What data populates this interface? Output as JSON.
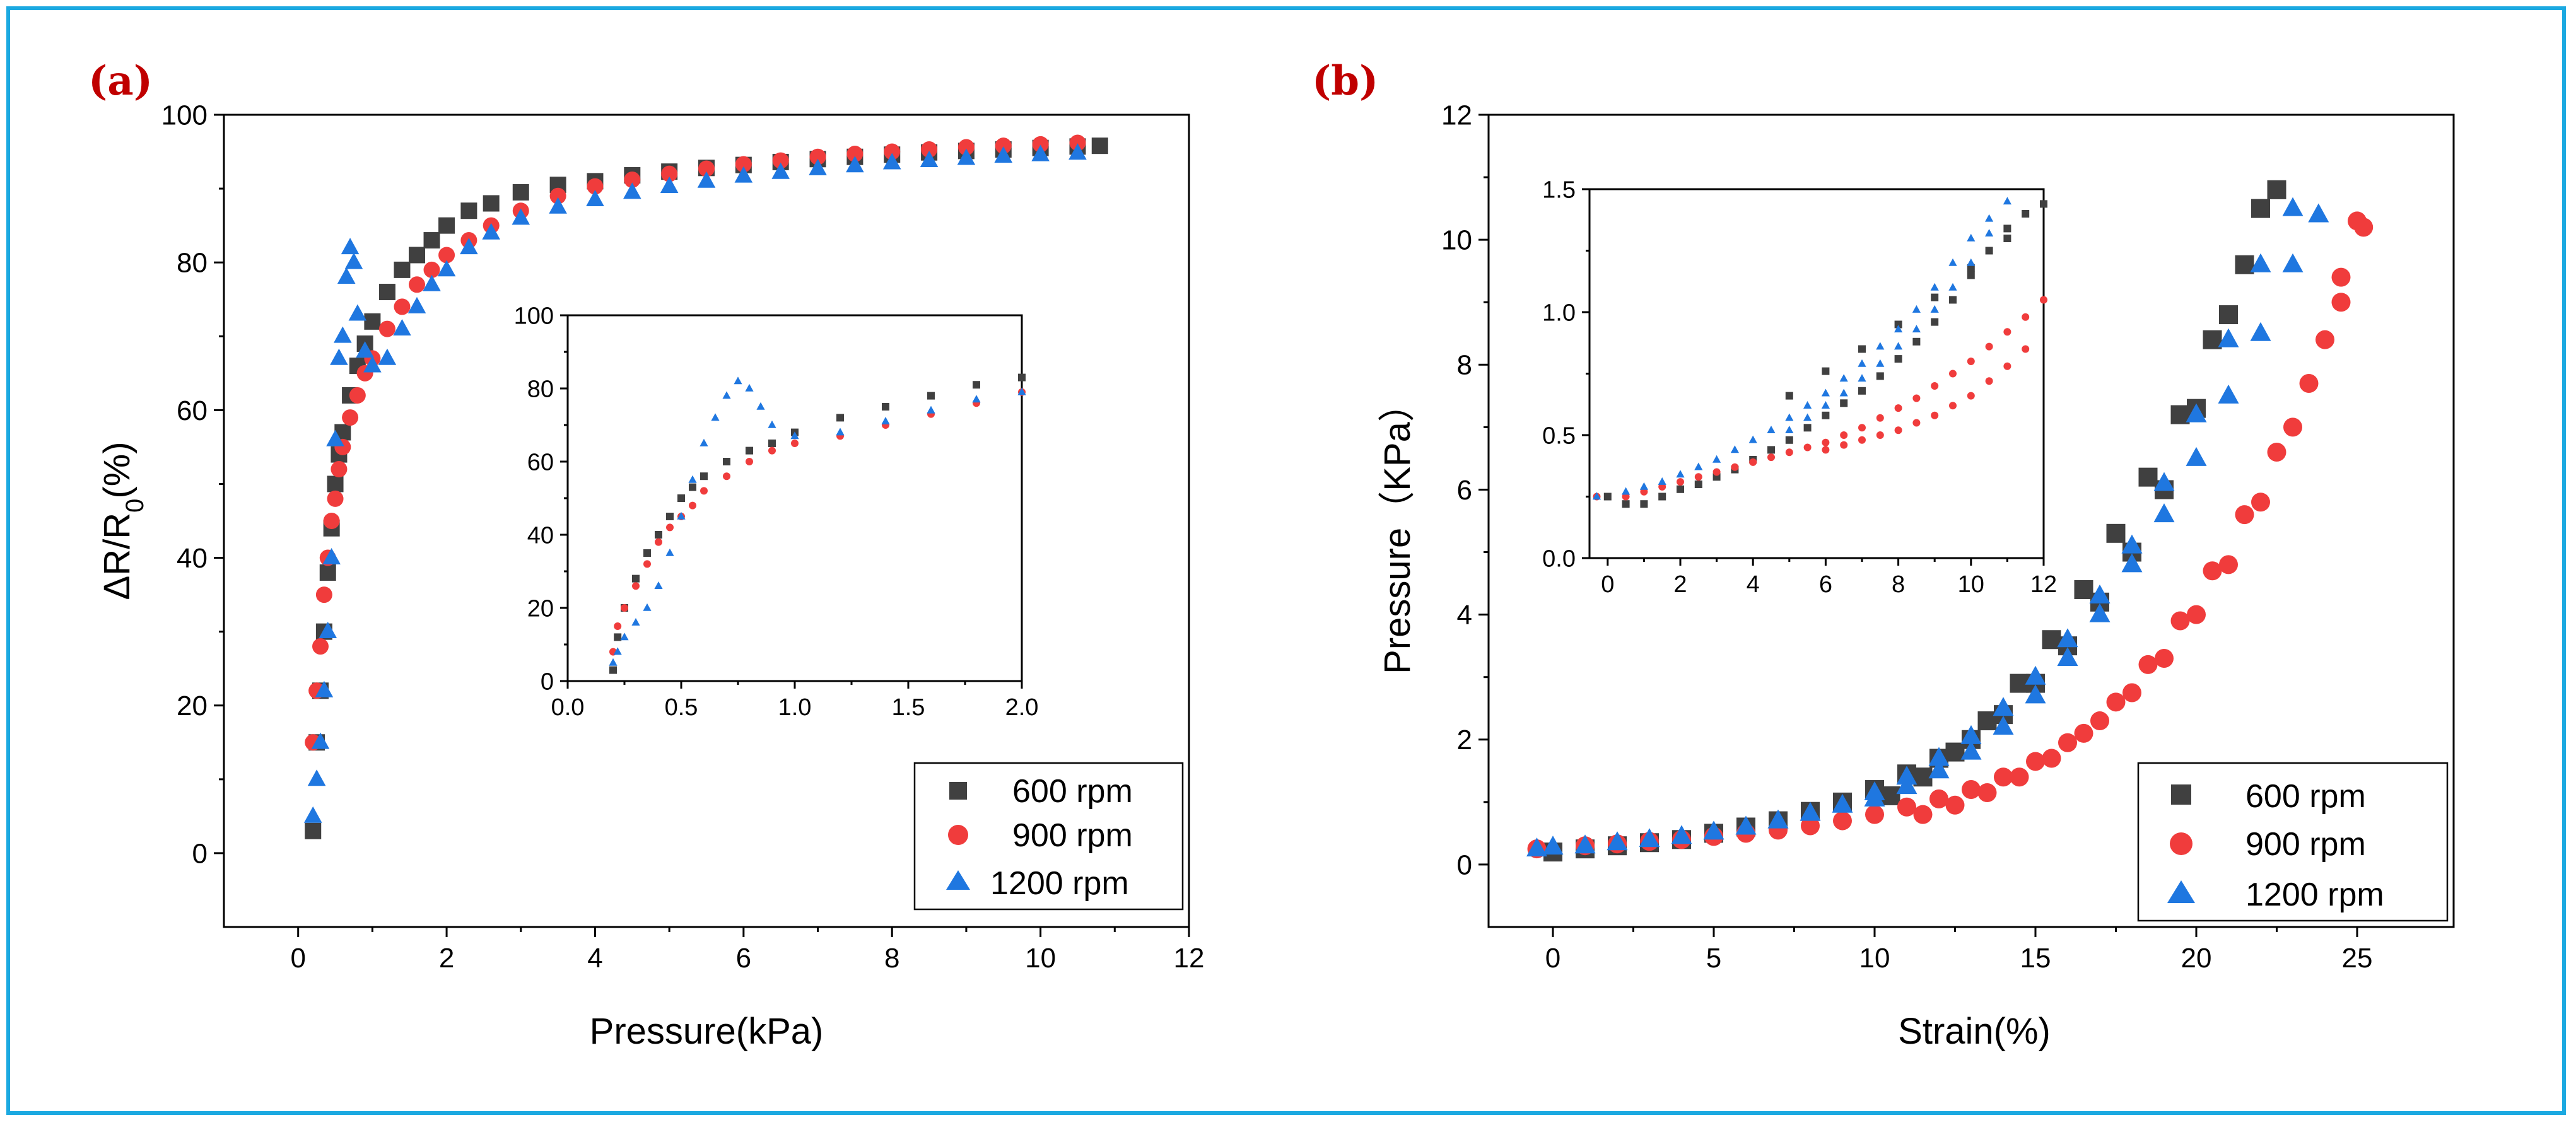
{
  "figure": {
    "border_color": "#1ba9e1",
    "label_color": "#c00000"
  },
  "series_style": [
    {
      "name": "600 rpm",
      "color": "#404040",
      "marker": "square"
    },
    {
      "name": "900 rpm",
      "color": "#f03c3c",
      "marker": "circle"
    },
    {
      "name": "1200 rpm",
      "color": "#1f77e0",
      "marker": "triangle"
    }
  ],
  "chart_data": [
    {
      "panel": "(a)",
      "type": "scatter",
      "xlabel": "Pressure(kPa)",
      "ylabel": "ΔR/R",
      "ylabel_sub": "0",
      "ylabel_suffix": "(%)",
      "xlim": [
        -1,
        12
      ],
      "ylim": [
        -10,
        100
      ],
      "xticks": [
        0,
        2,
        4,
        6,
        8,
        10,
        12
      ],
      "yticks": [
        0,
        20,
        40,
        60,
        80,
        100
      ],
      "legend": [
        "600 rpm",
        "900 rpm",
        "1200 rpm"
      ],
      "legend_position": "bottom-right",
      "series": [
        {
          "name": "600 rpm",
          "x": [
            0.2,
            0.25,
            0.3,
            0.35,
            0.4,
            0.45,
            0.5,
            0.55,
            0.6,
            0.7,
            0.8,
            0.9,
            1.0,
            1.2,
            1.4,
            1.6,
            1.8,
            2.0,
            2.3,
            2.6,
            3.0,
            3.5,
            4.0,
            4.5,
            5.0,
            5.5,
            6.0,
            6.5,
            7.0,
            7.5,
            8.0,
            8.5,
            9.0,
            9.5,
            10.0,
            10.5,
            10.8
          ],
          "y": [
            3,
            15,
            22,
            30,
            38,
            44,
            50,
            54,
            57,
            62,
            66,
            69,
            72,
            76,
            79,
            81,
            83,
            85,
            87,
            88,
            89.5,
            90.5,
            91,
            91.8,
            92.3,
            92.8,
            93.2,
            93.6,
            94,
            94.3,
            94.6,
            94.9,
            95.1,
            95.3,
            95.5,
            95.7,
            95.8
          ]
        },
        {
          "name": "900 rpm",
          "x": [
            0.2,
            0.25,
            0.3,
            0.35,
            0.4,
            0.45,
            0.5,
            0.55,
            0.6,
            0.7,
            0.8,
            0.9,
            1.0,
            1.2,
            1.4,
            1.6,
            1.8,
            2.0,
            2.3,
            2.6,
            3.0,
            3.5,
            4.0,
            4.5,
            5.0,
            5.5,
            6.0,
            6.5,
            7.0,
            7.5,
            8.0,
            8.5,
            9.0,
            9.5,
            10.0,
            10.5
          ],
          "y": [
            15,
            22,
            28,
            35,
            40,
            45,
            48,
            52,
            55,
            59,
            62,
            65,
            67,
            71,
            74,
            77,
            79,
            81,
            83,
            85,
            87,
            89,
            90.3,
            91.2,
            92,
            92.7,
            93.3,
            93.8,
            94.3,
            94.7,
            95,
            95.3,
            95.6,
            95.8,
            96,
            96.2
          ]
        },
        {
          "name": "1200 rpm",
          "x": [
            0.2,
            0.25,
            0.3,
            0.35,
            0.4,
            0.45,
            0.5,
            0.55,
            0.6,
            0.65,
            0.7,
            0.75,
            0.8,
            0.9,
            1.0,
            1.2,
            1.4,
            1.6,
            1.8,
            2.0,
            2.3,
            2.6,
            3.0,
            3.5,
            4.0,
            4.5,
            5.0,
            5.5,
            6.0,
            6.5,
            7.0,
            7.5,
            8.0,
            8.5,
            9.0,
            9.5,
            10.0,
            10.5
          ],
          "y": [
            5,
            10,
            15,
            22,
            30,
            40,
            56,
            67,
            70,
            78,
            82,
            80,
            73,
            68,
            66,
            67,
            71,
            74,
            77,
            79,
            82,
            84,
            86,
            87.5,
            88.5,
            89.5,
            90.3,
            91,
            91.7,
            92.2,
            92.7,
            93.1,
            93.5,
            93.8,
            94.1,
            94.4,
            94.6,
            94.8
          ]
        }
      ]
    },
    {
      "panel": "(a) inset",
      "type": "scatter",
      "xlim": [
        0,
        2
      ],
      "ylim": [
        0,
        100
      ],
      "xticks": [
        0.0,
        0.5,
        1.0,
        1.5,
        2.0
      ],
      "xtick_labels": [
        "0.0",
        "0.5",
        "1.0",
        "1.5",
        "2.0"
      ],
      "yticks": [
        0,
        20,
        40,
        60,
        80,
        100
      ],
      "series": [
        {
          "name": "600 rpm",
          "x": [
            0.2,
            0.22,
            0.25,
            0.3,
            0.35,
            0.4,
            0.45,
            0.5,
            0.55,
            0.6,
            0.7,
            0.8,
            0.9,
            1.0,
            1.2,
            1.4,
            1.6,
            1.8,
            2.0
          ],
          "y": [
            3,
            12,
            20,
            28,
            35,
            40,
            45,
            50,
            53,
            56,
            60,
            63,
            65,
            68,
            72,
            75,
            78,
            81,
            83
          ]
        },
        {
          "name": "900 rpm",
          "x": [
            0.2,
            0.22,
            0.25,
            0.3,
            0.35,
            0.4,
            0.45,
            0.5,
            0.55,
            0.6,
            0.7,
            0.8,
            0.9,
            1.0,
            1.2,
            1.4,
            1.6,
            1.8,
            2.0
          ],
          "y": [
            8,
            15,
            20,
            26,
            32,
            38,
            42,
            45,
            48,
            52,
            56,
            60,
            63,
            65,
            67,
            70,
            73,
            76,
            79
          ]
        },
        {
          "name": "1200 rpm",
          "x": [
            0.2,
            0.22,
            0.25,
            0.3,
            0.35,
            0.4,
            0.45,
            0.5,
            0.55,
            0.6,
            0.65,
            0.7,
            0.75,
            0.8,
            0.85,
            0.9,
            1.0,
            1.2,
            1.4,
            1.6,
            1.8,
            2.0
          ],
          "y": [
            5,
            8,
            12,
            16,
            20,
            26,
            35,
            45,
            55,
            65,
            72,
            78,
            82,
            80,
            75,
            70,
            67,
            68,
            71,
            74,
            77,
            79
          ]
        }
      ]
    },
    {
      "panel": "(b)",
      "type": "scatter",
      "xlabel": "Strain(%)",
      "ylabel": "Pressure（KPa）",
      "xlim": [
        -2,
        28
      ],
      "ylim": [
        -1,
        12
      ],
      "xticks": [
        0,
        5,
        10,
        15,
        20,
        25
      ],
      "yticks": [
        0,
        2,
        4,
        6,
        8,
        10,
        12
      ],
      "legend": [
        "600 rpm",
        "900 rpm",
        "1200 rpm"
      ],
      "legend_position": "bottom-right",
      "series": [
        {
          "name": "600 rpm",
          "x": [
            0,
            1,
            2,
            3,
            4,
            5,
            6,
            7,
            8,
            9,
            10,
            11,
            12,
            13,
            14,
            15,
            16,
            17,
            18,
            19,
            20,
            21,
            22,
            22.5,
            21.5,
            20.5,
            19.5,
            18.5,
            17.5,
            16.5,
            15.5,
            14.5,
            13.5,
            12.5,
            11.5,
            10.5
          ],
          "y": [
            0.2,
            0.25,
            0.3,
            0.35,
            0.4,
            0.5,
            0.6,
            0.7,
            0.85,
            1.0,
            1.2,
            1.45,
            1.7,
            2.0,
            2.4,
            2.9,
            3.5,
            4.2,
            5.0,
            6.0,
            7.3,
            8.8,
            10.5,
            10.8,
            9.6,
            8.4,
            7.2,
            6.2,
            5.3,
            4.4,
            3.6,
            2.9,
            2.3,
            1.8,
            1.4,
            1.1
          ]
        },
        {
          "name": "900 rpm",
          "x": [
            -0.5,
            1,
            2,
            3,
            4,
            5,
            6,
            7,
            8,
            9,
            10,
            11,
            12,
            13,
            14,
            15,
            16,
            17,
            18,
            19,
            20,
            21,
            22,
            23,
            24,
            24.5,
            25,
            25.2,
            24.5,
            23.5,
            22.5,
            21.5,
            20.5,
            19.5,
            18.5,
            17.5,
            16.5,
            15.5,
            14.5,
            13.5,
            12.5,
            11.5
          ],
          "y": [
            0.25,
            0.3,
            0.33,
            0.37,
            0.4,
            0.45,
            0.5,
            0.55,
            0.62,
            0.7,
            0.8,
            0.92,
            1.05,
            1.2,
            1.4,
            1.65,
            1.95,
            2.3,
            2.75,
            3.3,
            4.0,
            4.8,
            5.8,
            7.0,
            8.4,
            9.4,
            10.3,
            10.2,
            9.0,
            7.7,
            6.6,
            5.6,
            4.7,
            3.9,
            3.2,
            2.6,
            2.1,
            1.7,
            1.4,
            1.15,
            0.95,
            0.8
          ]
        },
        {
          "name": "1200 rpm",
          "x": [
            -0.5,
            0,
            1,
            2,
            3,
            4,
            5,
            6,
            7,
            8,
            9,
            10,
            11,
            12,
            13,
            14,
            15,
            16,
            17,
            18,
            19,
            20,
            21,
            22,
            23,
            23.8,
            23,
            22,
            21,
            20,
            19,
            18,
            17,
            16,
            15,
            14,
            13,
            12,
            11,
            10
          ],
          "y": [
            0.25,
            0.28,
            0.3,
            0.35,
            0.4,
            0.45,
            0.52,
            0.6,
            0.7,
            0.82,
            0.95,
            1.15,
            1.4,
            1.7,
            2.05,
            2.5,
            3.0,
            3.6,
            4.3,
            5.1,
            6.1,
            7.2,
            8.4,
            9.6,
            10.5,
            10.4,
            9.6,
            8.5,
            7.5,
            6.5,
            5.6,
            4.8,
            4.0,
            3.3,
            2.7,
            2.2,
            1.8,
            1.5,
            1.25,
            1.05
          ]
        }
      ]
    },
    {
      "panel": "(b) inset",
      "type": "scatter",
      "xlim": [
        -0.5,
        12
      ],
      "ylim": [
        0,
        1.5
      ],
      "xticks": [
        0,
        2,
        4,
        6,
        8,
        10,
        12
      ],
      "yticks": [
        0.0,
        0.5,
        1.0,
        1.5
      ],
      "ytick_labels": [
        "0.0",
        "0.5",
        "1.0",
        "1.5"
      ],
      "series": [
        {
          "name": "600 rpm",
          "x": [
            0,
            0.5,
            1,
            1.5,
            2,
            2.5,
            3,
            3.5,
            4,
            4.5,
            5,
            5.5,
            6,
            6.5,
            7,
            7.5,
            8,
            8.5,
            9,
            9.5,
            10,
            10.5,
            11,
            11.5,
            12,
            11,
            10,
            9,
            8,
            7,
            6,
            5
          ],
          "y": [
            0.25,
            0.22,
            0.22,
            0.25,
            0.28,
            0.3,
            0.33,
            0.36,
            0.4,
            0.44,
            0.48,
            0.53,
            0.58,
            0.63,
            0.68,
            0.74,
            0.81,
            0.88,
            0.96,
            1.05,
            1.15,
            1.25,
            1.34,
            1.4,
            1.44,
            1.3,
            1.18,
            1.06,
            0.95,
            0.85,
            0.76,
            0.66
          ]
        },
        {
          "name": "900 rpm",
          "x": [
            -0.3,
            0.5,
            1,
            1.5,
            2,
            2.5,
            3,
            3.5,
            4,
            4.5,
            5,
            5.5,
            6,
            6.5,
            7,
            7.5,
            8,
            8.5,
            9,
            9.5,
            10,
            10.5,
            11,
            11.5,
            12,
            11.5,
            11,
            10.5,
            10,
            9.5,
            9,
            8.5,
            8,
            7.5,
            7,
            6.5,
            6
          ],
          "y": [
            0.25,
            0.25,
            0.27,
            0.29,
            0.31,
            0.33,
            0.35,
            0.37,
            0.39,
            0.41,
            0.43,
            0.45,
            0.47,
            0.5,
            0.53,
            0.57,
            0.61,
            0.65,
            0.7,
            0.75,
            0.8,
            0.86,
            0.92,
            0.98,
            1.05,
            0.85,
            0.78,
            0.72,
            0.66,
            0.62,
            0.58,
            0.55,
            0.52,
            0.5,
            0.48,
            0.46,
            0.44
          ]
        },
        {
          "name": "1200 rpm",
          "x": [
            -0.3,
            0.5,
            1,
            1.5,
            2,
            2.5,
            3,
            3.5,
            4,
            4.5,
            5,
            5.5,
            6,
            6.5,
            7,
            7.5,
            8,
            8.5,
            9,
            9.5,
            10,
            10.5,
            11,
            10.5,
            10,
            9.5,
            9,
            8.5,
            8,
            7.5,
            7,
            6.5,
            6,
            5.5,
            5
          ],
          "y": [
            0.25,
            0.27,
            0.29,
            0.31,
            0.34,
            0.37,
            0.4,
            0.44,
            0.48,
            0.52,
            0.57,
            0.62,
            0.67,
            0.73,
            0.79,
            0.86,
            0.93,
            1.01,
            1.1,
            1.2,
            1.3,
            1.38,
            1.45,
            1.32,
            1.2,
            1.1,
            1.01,
            0.93,
            0.86,
            0.79,
            0.73,
            0.67,
            0.62,
            0.57,
            0.52
          ]
        }
      ]
    }
  ]
}
